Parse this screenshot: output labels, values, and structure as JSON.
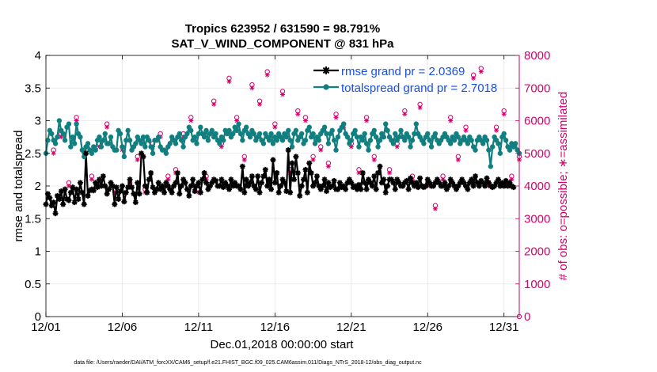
{
  "chart_data": {
    "type": "line",
    "title_line1": "Tropics 623952 / 631590 = 98.791%",
    "title_line2": "SAT_V_WIND_COMPONENT @ 831 hPa",
    "xlabel": "Dec.01,2018 00:00:00 start",
    "ylabel_left": "rmse and totalspread",
    "ylabel_right": "# of obs: o=possible; ∗=assimilated",
    "footnote": "data file: /Users/raeder/DAI/ATM_forcXX/CAM6_setup/f.e21.FHIST_BGC.f09_025.CAM6assim.011/Diags_NTrS_2018-12/obs_diag_output.nc",
    "x_range": [
      0,
      31
    ],
    "ylim_left": [
      0,
      4
    ],
    "ylim_right": [
      0,
      8000
    ],
    "x_ticks": [
      {
        "x": 0,
        "label": "12/01"
      },
      {
        "x": 5,
        "label": "12/06"
      },
      {
        "x": 10,
        "label": "12/11"
      },
      {
        "x": 15,
        "label": "12/16"
      },
      {
        "x": 20,
        "label": "12/21"
      },
      {
        "x": 25,
        "label": "12/26"
      },
      {
        "x": 30,
        "label": "12/31"
      }
    ],
    "y_ticks_left": [
      "0",
      "0.5",
      "1",
      "1.5",
      "2",
      "2.5",
      "3",
      "3.5",
      "4"
    ],
    "y_ticks_right": [
      "0",
      "1000",
      "2000",
      "3000",
      "4000",
      "5000",
      "6000",
      "7000",
      "8000"
    ],
    "grid": true,
    "legend_position": "top-right",
    "colors": {
      "rmse": "#000000",
      "spread": "#117f7f",
      "obs": "#d6006b",
      "legend_text": "#1a4fe0",
      "grid": "#e6e6e6"
    },
    "series": [
      {
        "name": "rmse grand pr = 2.0369",
        "x_start": 0,
        "x_step": 0.125,
        "values": [
          1.72,
          1.88,
          1.82,
          1.7,
          1.75,
          1.58,
          1.85,
          1.8,
          1.92,
          1.72,
          1.95,
          1.8,
          1.78,
          1.9,
          1.98,
          1.75,
          1.95,
          1.8,
          2.05,
          1.9,
          1.72,
          2.5,
          1.85,
          1.93,
          1.95,
          1.93,
          2.05,
          1.98,
          2.1,
          2.0,
          2.15,
          2.0,
          1.88,
          1.95,
          2.05,
          2.0,
          1.72,
          1.98,
          1.8,
          1.92,
          2.0,
          1.76,
          1.9,
          1.98,
          2.1,
          1.98,
          1.88,
          1.75,
          2.05,
          1.88,
          2.5,
          2.45,
          2.0,
          1.9,
          2.1,
          2.2,
          1.98,
          1.9,
          1.95,
          2.05,
          1.95,
          2.0,
          1.9,
          2.05,
          2.0,
          1.95,
          1.9,
          2.0,
          2.05,
          2.2,
          1.88,
          2.0,
          2.1,
          2.05,
          1.95,
          1.85,
          2.0,
          2.1,
          1.92,
          2.0,
          2.05,
          1.9,
          2.1,
          2.2,
          2.05,
          1.95,
          2.0,
          2.05,
          2.1,
          2.08,
          2.0,
          2.0,
          2.1,
          1.98,
          2.05,
          2.0,
          1.95,
          2.1,
          2.0,
          2.05,
          2.0,
          2.0,
          1.95,
          2.3,
          1.9,
          2.1,
          2.0,
          2.05,
          2.15,
          2.0,
          1.95,
          2.15,
          1.9,
          2.05,
          2.15,
          2.25,
          2.0,
          2.1,
          1.95,
          2.4,
          2.05,
          2.2,
          1.9,
          2.0,
          2.1,
          2.05,
          1.92,
          2.55,
          1.9,
          2.35,
          2.1,
          2.45,
          2.2,
          1.85,
          2.0,
          2.1,
          2.25,
          1.9,
          2.35,
          2.2,
          2.0,
          2.05,
          2.15,
          2.0,
          1.95,
          2.0,
          2.1,
          1.92,
          2.05,
          1.98,
          2.0,
          2.08,
          1.95,
          1.95,
          2.05,
          1.98,
          2.0,
          1.95,
          2.05,
          2.1,
          2.05,
          1.98,
          2.0,
          1.95,
          2.02,
          1.95,
          2.2,
          2.05,
          1.95,
          2.1,
          2.05,
          2.0,
          2.15,
          1.95,
          2.2,
          2.3,
          2.05,
          2.1,
          1.9,
          2.0,
          2.1,
          2.1,
          2.05,
          1.95,
          2.1,
          2.05,
          2.0,
          2.0,
          2.05,
          2.08,
          1.95,
          2.12,
          2.05,
          2.0,
          2.05,
          1.98,
          2.12,
          2.0,
          1.98,
          2.0,
          2.1,
          2.05,
          2.0,
          2.0,
          2.05,
          2.1,
          2.05,
          2.0,
          2.0,
          2.05,
          1.95,
          2.0,
          2.1,
          2.05,
          2.0,
          1.95,
          2.0,
          2.05,
          2.1,
          2.05,
          2.0,
          1.95,
          2.05,
          2.1,
          2.0,
          2.15,
          2.05,
          2.0,
          2.08,
          2.05,
          2.0,
          2.12,
          2.05,
          2.0,
          1.98,
          2.0,
          2.05,
          2.1,
          2.0,
          2.05,
          2.0,
          2.08,
          2.0,
          2.05,
          2.0,
          1.98
        ]
      },
      {
        "name": "totalspread grand pr = 2.7018",
        "x_start": 0,
        "x_step": 0.125,
        "values": [
          2.5,
          2.7,
          2.85,
          2.8,
          2.7,
          2.65,
          2.75,
          3.0,
          2.85,
          2.8,
          2.7,
          2.9,
          2.95,
          2.6,
          2.75,
          2.65,
          2.95,
          2.8,
          2.75,
          2.55,
          2.45,
          2.6,
          2.65,
          2.55,
          2.5,
          2.6,
          2.55,
          2.7,
          2.75,
          2.6,
          2.7,
          2.8,
          2.65,
          2.65,
          2.75,
          2.6,
          2.55,
          2.55,
          2.85,
          2.8,
          2.6,
          2.45,
          2.7,
          2.85,
          2.7,
          2.55,
          2.6,
          2.65,
          2.75,
          2.7,
          2.65,
          2.75,
          2.6,
          2.75,
          2.7,
          2.6,
          2.5,
          2.7,
          2.7,
          2.75,
          2.6,
          2.55,
          2.55,
          2.5,
          2.6,
          2.65,
          2.75,
          2.7,
          2.65,
          2.75,
          2.8,
          2.7,
          2.6,
          2.75,
          2.8,
          2.9,
          2.85,
          2.7,
          2.75,
          2.65,
          2.8,
          2.9,
          2.8,
          2.75,
          2.85,
          2.7,
          2.8,
          2.85,
          2.75,
          2.8,
          2.7,
          2.65,
          2.75,
          2.7,
          2.85,
          2.8,
          2.85,
          2.75,
          2.8,
          2.9,
          2.85,
          2.95,
          2.8,
          2.7,
          2.85,
          2.9,
          2.8,
          2.75,
          2.85,
          2.8,
          2.7,
          2.75,
          2.8,
          2.7,
          2.65,
          2.8,
          2.75,
          2.7,
          2.8,
          2.65,
          2.75,
          2.7,
          2.8,
          2.75,
          2.7,
          2.8,
          2.75,
          2.85,
          2.7,
          2.6,
          2.8,
          2.85,
          2.7,
          2.75,
          2.8,
          2.65,
          2.7,
          2.85,
          2.9,
          2.75,
          2.8,
          2.65,
          2.75,
          2.7,
          2.8,
          2.85,
          2.9,
          2.8,
          2.65,
          2.8,
          2.85,
          2.7,
          2.55,
          2.75,
          2.85,
          2.9,
          2.95,
          2.8,
          2.75,
          2.65,
          2.7,
          2.8,
          2.85,
          2.75,
          2.6,
          2.75,
          2.7,
          2.8,
          2.65,
          2.55,
          2.7,
          2.8,
          2.85,
          2.75,
          2.6,
          2.7,
          2.8,
          2.75,
          2.95,
          2.85,
          2.75,
          2.7,
          2.65,
          2.8,
          2.7,
          2.75,
          2.85,
          2.75,
          2.7,
          2.8,
          2.75,
          2.6,
          2.7,
          2.8,
          2.95,
          2.8,
          2.75,
          2.7,
          2.65,
          2.75,
          2.8,
          2.7,
          2.6,
          2.75,
          2.8,
          2.7,
          2.65,
          2.7,
          2.75,
          2.8,
          2.75,
          2.7,
          2.65,
          2.75,
          2.7,
          2.8,
          2.75,
          2.65,
          2.7,
          2.75,
          2.7,
          2.65,
          2.75,
          2.7,
          2.6,
          2.55,
          2.7,
          2.75,
          2.7,
          2.65,
          2.75,
          2.7,
          2.55,
          2.3,
          2.6,
          2.75,
          2.7,
          2.65,
          2.5,
          2.75,
          2.8,
          2.7,
          2.6,
          2.55,
          2.65,
          2.6,
          2.65,
          2.55,
          2.5
        ]
      },
      {
        "name": "possible",
        "x_start": 0.5,
        "x_step": 0.5,
        "values": [
          5100,
          5600,
          4100,
          6100,
          5100,
          4300,
          5300,
          5900,
          3900,
          5200,
          4100,
          4900,
          3900,
          5300,
          5600,
          4300,
          4500,
          5600,
          6100,
          3900,
          4300,
          6600,
          5300,
          7300,
          6100,
          4900,
          7100,
          6600,
          7500,
          5900,
          6900,
          4500,
          6300,
          6100,
          4900,
          5200,
          4700,
          6200,
          5900,
          5300,
          4500,
          6100,
          4900,
          5600,
          4500,
          5300,
          6300,
          4300,
          6500,
          4100,
          3400,
          4300,
          6100,
          4900,
          5800,
          7400,
          7600,
          4100,
          5800,
          6300,
          4300,
          4900
        ]
      },
      {
        "name": "assimilated",
        "x_start": 0.5,
        "x_step": 0.5,
        "values": [
          5000,
          5500,
          4000,
          6000,
          5000,
          4200,
          5200,
          5800,
          3800,
          5100,
          4000,
          4800,
          3800,
          5200,
          5500,
          4200,
          4400,
          5500,
          6000,
          3800,
          4200,
          6500,
          5200,
          7200,
          6000,
          4800,
          7000,
          6500,
          7400,
          5800,
          6800,
          4400,
          6200,
          6000,
          4800,
          5100,
          4600,
          6100,
          5800,
          5200,
          4400,
          6000,
          4800,
          5500,
          4400,
          5200,
          6200,
          4200,
          6400,
          4000,
          3300,
          4200,
          6000,
          4800,
          5700,
          7300,
          7500,
          4000,
          5700,
          6200,
          4200,
          4800
        ]
      }
    ]
  }
}
